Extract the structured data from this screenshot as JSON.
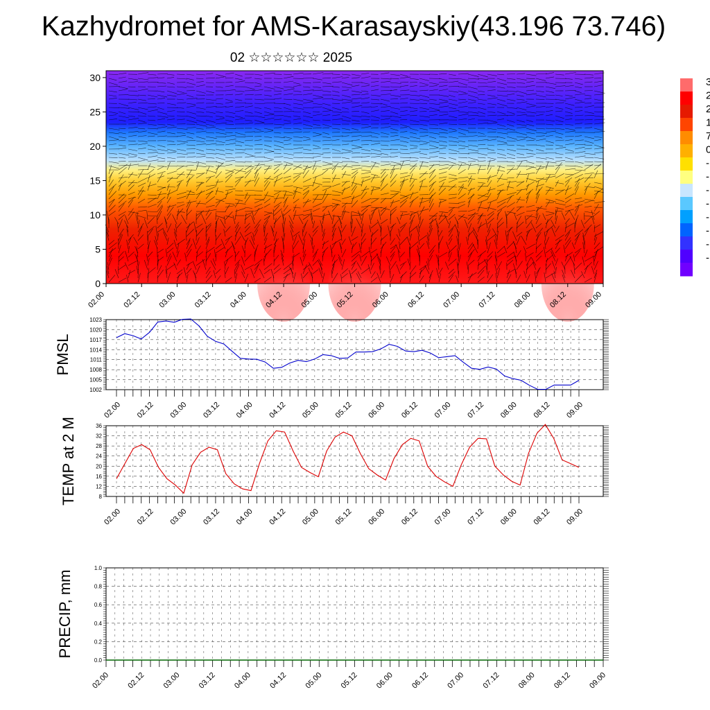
{
  "title": "Kazhydromet for AMS-Karasayskiy(43.196 73.746)",
  "subtitle": "02 ☆☆☆☆☆☆ 2025",
  "x_ticks": [
    "02.00",
    "02.12",
    "03.00",
    "03.12",
    "04.00",
    "04.12",
    "05.00",
    "05.12",
    "06.00",
    "06.12",
    "07.00",
    "07.12",
    "08.00",
    "08.12",
    "09.00"
  ],
  "colorbar": {
    "labels": [
      "3",
      "2",
      "2",
      "1",
      "7",
      "0",
      "-",
      "-",
      "-",
      "-",
      "-",
      "-",
      "-",
      "-"
    ],
    "colors": [
      "#ff6b6b",
      "#ff0000",
      "#e61a00",
      "#ff4500",
      "#ff8c00",
      "#ffb000",
      "#ffe000",
      "#ffff80",
      "#c8e6ff",
      "#5ac8ff",
      "#00a0ff",
      "#0064ff",
      "#3232ff",
      "#5000ff",
      "#7000ff"
    ]
  },
  "chart_data": [
    {
      "id": "cross-section",
      "type": "heatmap",
      "title": "02 ☆☆☆☆☆☆ 2025",
      "xlabel": "",
      "ylabel": "",
      "categories": [
        "02.00",
        "02.12",
        "03.00",
        "03.12",
        "04.00",
        "04.12",
        "05.00",
        "05.12",
        "06.00",
        "06.12",
        "07.00",
        "07.12",
        "08.00",
        "08.12",
        "09.00"
      ],
      "yticks": [
        0,
        5,
        10,
        15,
        20,
        25,
        30
      ],
      "ylim": [
        0,
        31
      ],
      "levels_from_bottom": [
        {
          "y": 0,
          "color": "#ff1a1a"
        },
        {
          "y": 4,
          "color": "#ff0000"
        },
        {
          "y": 8,
          "color": "#ee2200"
        },
        {
          "y": 11,
          "color": "#ff5a00"
        },
        {
          "y": 13,
          "color": "#ff9a00"
        },
        {
          "y": 15,
          "color": "#ffcc30"
        },
        {
          "y": 16.5,
          "color": "#fff080"
        },
        {
          "y": 18,
          "color": "#b8e0ff"
        },
        {
          "y": 20,
          "color": "#5ab4ff"
        },
        {
          "y": 22,
          "color": "#1e78ff"
        },
        {
          "y": 23.5,
          "color": "#1e1eff"
        },
        {
          "y": 26,
          "color": "#3a20ff"
        },
        {
          "y": 31,
          "color": "#8a28f0"
        }
      ],
      "warm_cores_x": [
        "04.12",
        "05.12",
        "08.12"
      ]
    },
    {
      "id": "pmsl",
      "type": "line",
      "ylabel": "PMSL",
      "yticks": [
        1002,
        1005,
        1008,
        1011,
        1014,
        1017,
        1020,
        1023
      ],
      "ylim": [
        1002,
        1023
      ],
      "color": "#0000cc",
      "x_step_hours": 3,
      "x_start_index": 0,
      "values": [
        1017.6,
        1018.8,
        1018.2,
        1017.2,
        1019.2,
        1022.3,
        1022.6,
        1022.2,
        1023.1,
        1023.2,
        1021.1,
        1018.0,
        1016.5,
        1015.7,
        1013.5,
        1011.4,
        1011.2,
        1011.1,
        1010.3,
        1008.4,
        1008.7,
        1010.0,
        1010.8,
        1010.4,
        1011.2,
        1012.5,
        1012.2,
        1011.4,
        1011.5,
        1013.3,
        1013.3,
        1013.4,
        1014.2,
        1015.6,
        1015.0,
        1013.6,
        1013.4,
        1013.8,
        1013.0,
        1011.6,
        1011.9,
        1012.2,
        1010.2,
        1008.4,
        1008.1,
        1008.8,
        1008.2,
        1006.1,
        1005.3,
        1004.8,
        1003.3,
        1002.1,
        1002.1,
        1003.4,
        1003.4,
        1003.4,
        1004.8
      ]
    },
    {
      "id": "temp2m",
      "type": "line",
      "ylabel": "TEMP at 2 M",
      "yticks": [
        8,
        12,
        16,
        20,
        24,
        28,
        32,
        36
      ],
      "ylim": [
        8,
        36
      ],
      "color": "#dd0000",
      "x_step_hours": 6,
      "values": [
        15.0,
        21.0,
        27.0,
        28.5,
        26.5,
        19.5,
        15.0,
        12.5,
        9.3,
        20.5,
        25.5,
        27.5,
        26.5,
        17.0,
        13.0,
        11.0,
        10.3,
        21.0,
        30.0,
        34.0,
        33.5,
        26.0,
        19.5,
        17.5,
        15.8,
        26.0,
        31.5,
        33.5,
        32.0,
        25.0,
        19.0,
        16.5,
        14.5,
        23.0,
        28.5,
        31.0,
        30.0,
        20.0,
        16.0,
        13.8,
        12.0,
        20.5,
        27.5,
        31.0,
        30.8,
        20.0,
        16.5,
        14.0,
        12.5,
        25.0,
        33.0,
        36.5,
        31.0,
        22.5,
        21.0,
        19.5
      ]
    },
    {
      "id": "precip",
      "type": "line",
      "ylabel": "PRECIP, mm",
      "yticks": [
        0.0,
        0.2,
        0.4,
        0.6,
        0.8,
        1.0
      ],
      "ytick_labels": [
        "0.0",
        "0.2",
        "0.4",
        "0.6",
        "0.8",
        "1.0"
      ],
      "ylim": [
        0,
        1
      ],
      "color": "#006600",
      "values": [
        0,
        0,
        0,
        0,
        0,
        0,
        0,
        0,
        0,
        0,
        0,
        0,
        0,
        0,
        0
      ]
    }
  ]
}
